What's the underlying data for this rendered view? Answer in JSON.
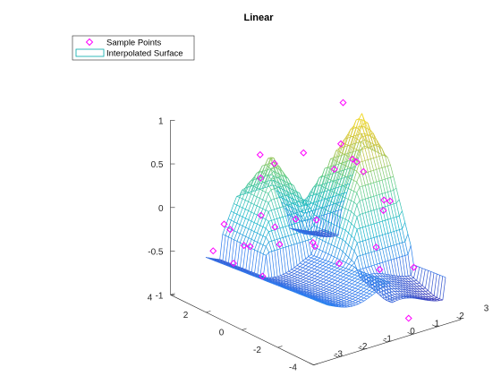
{
  "chart_data": {
    "type": "surface",
    "title": "Linear",
    "legend": {
      "placement": "top-left",
      "entries": [
        {
          "label": "Sample Points",
          "marker": "diamond",
          "color": "#ff00ff"
        },
        {
          "label": "Interpolated Surface",
          "marker": "mesh-line",
          "color": "#00aaaa"
        }
      ]
    },
    "xlim": [
      -3,
      3
    ],
    "ylim": [
      -4,
      4
    ],
    "zlim": [
      -1,
      1
    ],
    "x_ticks": [
      "-3",
      "-2",
      "-1",
      "0",
      "1",
      "2",
      "3"
    ],
    "y_ticks": [
      "-4",
      "-2",
      "0",
      "2",
      "4"
    ],
    "z_ticks": [
      "-1",
      "-0.5",
      "0",
      "0.5",
      "1"
    ],
    "colormap": [
      "#3e26a8",
      "#2d7cf0",
      "#16b8c8",
      "#5dcc86",
      "#c9c13a",
      "#fadd1f"
    ],
    "grid": false,
    "surface_peaks": [
      {
        "x": 0,
        "y": 2.5,
        "z": 0.5
      },
      {
        "x": 2.2,
        "y": 0.5,
        "z": 1.0
      }
    ],
    "sample_points": [
      {
        "x": -1.4,
        "y": 3.2,
        "z": -0.25
      },
      {
        "x": -1.3,
        "y": 3.0,
        "z": -0.3
      },
      {
        "x": -1.7,
        "y": 3.4,
        "z": -0.55
      },
      {
        "x": -1.6,
        "y": 2.4,
        "z": -0.6
      },
      {
        "x": -1.1,
        "y": 2.5,
        "z": -0.45
      },
      {
        "x": -1.0,
        "y": 2.3,
        "z": -0.45
      },
      {
        "x": -1.0,
        "y": 1.6,
        "z": -0.72
      },
      {
        "x": -0.7,
        "y": 2.1,
        "z": -0.1
      },
      {
        "x": -0.3,
        "y": 2.7,
        "z": 0.5
      },
      {
        "x": -0.5,
        "y": 2.4,
        "z": 0.28
      },
      {
        "x": -0.5,
        "y": 1.6,
        "z": -0.2
      },
      {
        "x": 0.2,
        "y": 1.4,
        "z": -0.15
      },
      {
        "x": -0.6,
        "y": 1.2,
        "z": -0.35
      },
      {
        "x": 0.5,
        "y": 3.0,
        "z": 0.3
      },
      {
        "x": 1.1,
        "y": 2.2,
        "z": 0.45
      },
      {
        "x": 1.6,
        "y": 0.8,
        "z": 0.65
      },
      {
        "x": 2.0,
        "y": 0.7,
        "z": 0.45
      },
      {
        "x": 2.1,
        "y": 0.6,
        "z": 0.42
      },
      {
        "x": 2.3,
        "y": 0.5,
        "z": 0.3
      },
      {
        "x": 2.2,
        "y": 1.5,
        "z": 1.0
      },
      {
        "x": 1.7,
        "y": 1.3,
        "z": 0.3
      },
      {
        "x": 2.7,
        "y": -0.1,
        "z": 0.0
      },
      {
        "x": 2.8,
        "y": -0.3,
        "z": 0.0
      },
      {
        "x": 2.6,
        "y": -0.2,
        "z": -0.1
      },
      {
        "x": 0.9,
        "y": 1.2,
        "z": -0.2
      },
      {
        "x": 0.4,
        "y": 0.6,
        "z": -0.4
      },
      {
        "x": 0.1,
        "y": 0.3,
        "z": -0.3
      },
      {
        "x": 0.8,
        "y": -0.2,
        "z": -0.55
      },
      {
        "x": 1.5,
        "y": -1.5,
        "z": -0.55
      },
      {
        "x": 1.0,
        "y": -2.0,
        "z": -0.2
      },
      {
        "x": 1.8,
        "y": -3.0,
        "z": -0.4
      },
      {
        "x": 1.3,
        "y": -3.4,
        "z": -0.9
      }
    ]
  }
}
